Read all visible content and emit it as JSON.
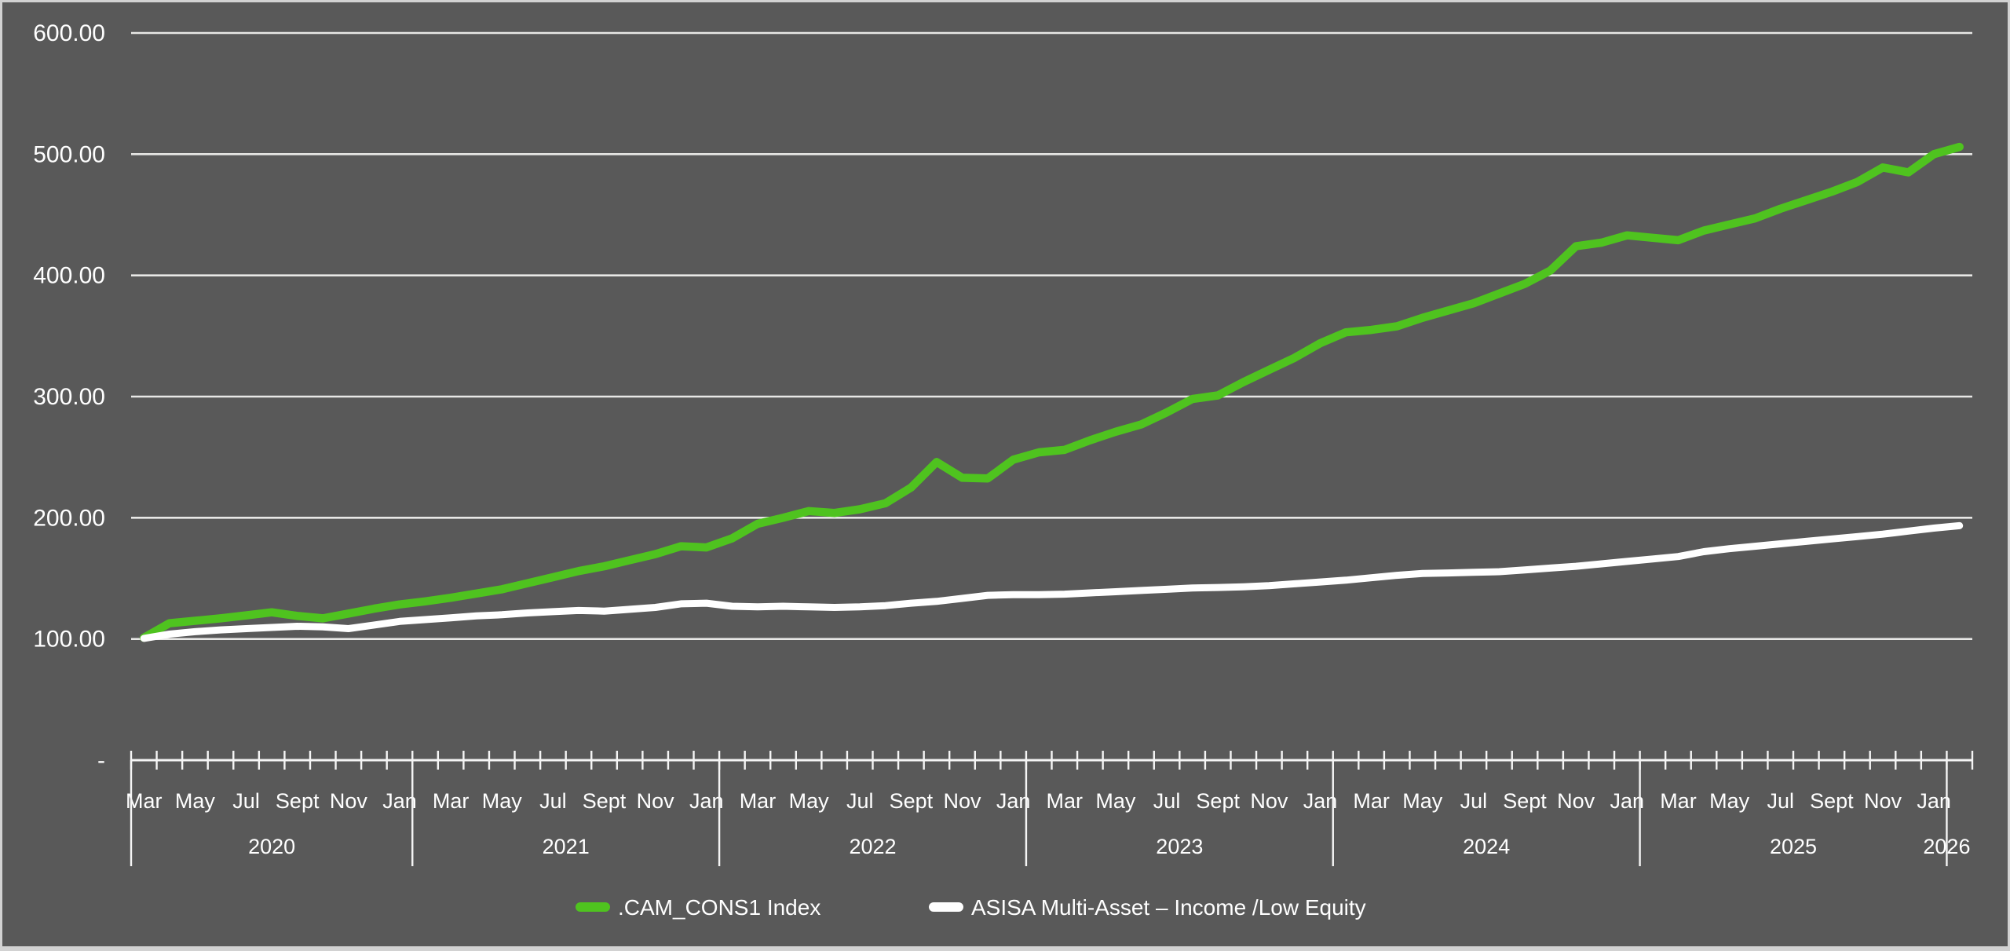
{
  "colors": {
    "background": "#595959",
    "frame_border": "#d2d2d2",
    "gridline": "#e8e8e6",
    "axis": "#f5f5f5",
    "text": "#ffffff",
    "series_green": "#4fc31f",
    "series_white": "#ffffff"
  },
  "chart_data": {
    "type": "line",
    "title": "",
    "xlabel": "",
    "ylabel": "",
    "ylim": [
      0,
      600
    ],
    "grid": "horizontal",
    "legend_position": "bottom-center",
    "y_axis": {
      "tick_labels": [
        "600.00",
        "500.00",
        "400.00",
        "300.00",
        "200.00",
        "100.00",
        "-"
      ],
      "tick_values": [
        600,
        500,
        400,
        300,
        200,
        100,
        0
      ]
    },
    "x_axis": {
      "start_month": "Mar 2020",
      "end_month": "Feb 2026",
      "months_total": 72,
      "month_label_cycle": [
        "Mar",
        "May",
        "Jul",
        "Sept",
        "Nov",
        "Jan"
      ],
      "year_labels": [
        "2020",
        "2021",
        "2022",
        "2023",
        "2024",
        "2025",
        "2026"
      ],
      "jan_boundary_month_indices": [
        10,
        22,
        34,
        46,
        58,
        70
      ]
    },
    "series": [
      {
        "name": ".CAM_CONS1 Index",
        "color": "#4fc31f",
        "stroke_width": 10.5,
        "values": [
          101,
          113,
          115,
          117,
          119.5,
          122,
          119,
          117,
          121,
          125,
          128.5,
          131,
          134,
          137.5,
          141,
          146,
          151,
          156,
          160,
          165,
          170,
          176.5,
          175.5,
          183,
          195,
          200,
          205.5,
          204,
          207,
          212,
          225,
          246,
          233,
          232.5,
          248,
          254,
          256,
          264,
          271,
          277,
          287,
          298,
          301,
          312,
          322,
          332,
          344,
          353,
          355,
          358,
          365,
          371,
          377,
          385,
          393,
          404,
          424,
          427,
          433,
          431,
          429,
          437,
          442,
          447,
          455,
          462,
          469,
          477,
          489,
          485,
          500,
          506
        ]
      },
      {
        "name": "ASISA  Multi-Asset – Income /Low Equity",
        "color": "#ffffff",
        "stroke_width": 9,
        "values": [
          100.5,
          104,
          106,
          107.5,
          108.5,
          109.5,
          110.5,
          110,
          108.5,
          111.5,
          114.5,
          116,
          117.5,
          119,
          120,
          121.5,
          122.5,
          123.5,
          123,
          124.5,
          126,
          129,
          129.5,
          127,
          126.5,
          127,
          126.5,
          126,
          126.5,
          127.5,
          129.5,
          131,
          133.5,
          136,
          136.5,
          136.5,
          137,
          138,
          139,
          140,
          141,
          142,
          142.5,
          143,
          144,
          145.5,
          147,
          148.5,
          150.5,
          152.5,
          154,
          154.5,
          155,
          155.5,
          157,
          158.5,
          160,
          162,
          164,
          166,
          168,
          172,
          174.5,
          176.5,
          178.5,
          180.5,
          182.5,
          184.5,
          186.5,
          189,
          191.5,
          193.5
        ]
      }
    ]
  }
}
